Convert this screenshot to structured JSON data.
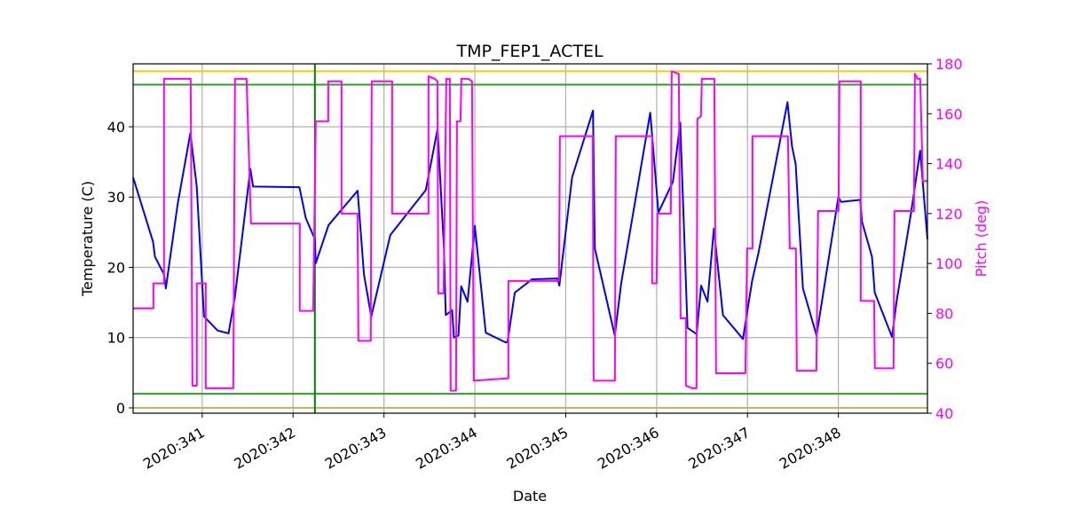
{
  "chart_data": {
    "type": "line",
    "title": "TMP_FEP1_ACTEL",
    "xlabel": "Date",
    "ylabel": "Temperature (C)",
    "y2label": "Pitch (deg)",
    "xlim": [
      340.24,
      348.98
    ],
    "xticks": [
      {
        "value": 341,
        "label": "2020:341"
      },
      {
        "value": 342,
        "label": "2020:342"
      },
      {
        "value": 343,
        "label": "2020:343"
      },
      {
        "value": 344,
        "label": "2020:344"
      },
      {
        "value": 345,
        "label": "2020:345"
      },
      {
        "value": 346,
        "label": "2020:346"
      },
      {
        "value": 347,
        "label": "2020:347"
      },
      {
        "value": 348,
        "label": "2020:348"
      }
    ],
    "ylim": [
      -0.76,
      48.96
    ],
    "yticks": [
      0,
      10,
      20,
      30,
      40
    ],
    "y2lim": [
      40,
      180
    ],
    "y2ticks": [
      40,
      60,
      80,
      100,
      120,
      140,
      160,
      180
    ],
    "y2color": "#ff00ff",
    "grid": true,
    "hlines": [
      {
        "y": 47.9,
        "color": "#ffc800"
      },
      {
        "y": 46,
        "color": "#2ca02c"
      },
      {
        "y": 2,
        "color": "#2ca02c"
      },
      {
        "y": 0,
        "color": "#c8b464"
      }
    ],
    "vlines": [
      {
        "x": 342.24,
        "color": "#008000"
      }
    ],
    "series": [
      {
        "color": "#0000ff",
        "x": [
          340.24,
          340.46,
          340.48,
          340.58,
          340.6,
          340.73,
          340.87,
          340.94,
          341.02,
          341.17,
          341.29,
          341.36,
          341.53,
          341.56,
          342.07,
          342.14,
          342.24,
          342.25,
          342.39,
          342.71,
          342.78,
          342.86,
          343.07,
          343.46,
          343.59,
          343.66,
          343.68,
          343.75,
          343.77,
          343.82,
          343.85,
          343.92,
          344.0,
          344.12,
          344.34,
          344.36,
          344.44,
          344.63,
          344.91,
          344.93,
          345.07,
          345.3,
          345.32,
          345.54,
          345.61,
          345.93,
          346.02,
          346.18,
          346.26,
          346.34,
          346.44,
          346.49,
          346.56,
          346.63,
          346.73,
          346.95,
          347.05,
          347.12,
          347.44,
          347.49,
          347.53,
          347.61,
          347.76,
          348.0,
          348.03,
          348.24,
          348.26,
          348.37,
          348.4,
          348.59,
          348.64,
          348.8,
          348.9,
          348.98
        ],
        "values": [
          32.8,
          23.6,
          21.5,
          19,
          17,
          29,
          39.1,
          31.5,
          13,
          11,
          10.6,
          15.8,
          34,
          31.5,
          31.4,
          27,
          24,
          20.6,
          26,
          30.9,
          19,
          13,
          24.6,
          31,
          39.7,
          22.7,
          13.2,
          13.9,
          10,
          10.3,
          17.3,
          15.1,
          25.9,
          10.7,
          9.3,
          9.4,
          16.4,
          18.3,
          18.4,
          17.4,
          32.8,
          42.3,
          22.7,
          10.3,
          17.7,
          42,
          27.8,
          32.2,
          40.6,
          11.4,
          10.5,
          17.4,
          15.1,
          25.5,
          13.2,
          9.8,
          18,
          22,
          43.5,
          37.2,
          34.7,
          17,
          10.3,
          30,
          29.3,
          29.6,
          26.5,
          21.5,
          16.4,
          10.1,
          15.1,
          27.8,
          36.6,
          24
        ]
      },
      {
        "color": "#ff00ff",
        "axis": "y2",
        "x": [
          340.238,
          340.463,
          340.463,
          340.58,
          340.58,
          340.873,
          340.893,
          340.941,
          340.941,
          341.039,
          341.039,
          341.342,
          341.361,
          341.488,
          341.537,
          342.074,
          342.074,
          342.221,
          342.25,
          342.387,
          342.387,
          342.533,
          342.533,
          342.709,
          342.719,
          342.855,
          342.865,
          343.09,
          343.09,
          343.49,
          343.49,
          343.559,
          343.588,
          343.598,
          343.656,
          343.686,
          343.725,
          343.734,
          343.793,
          343.803,
          343.842,
          343.852,
          343.93,
          343.969,
          343.988,
          344.369,
          344.369,
          344.926,
          344.936,
          345.297,
          345.307,
          345.541,
          345.551,
          345.951,
          345.951,
          346.0,
          346.01,
          346.156,
          346.166,
          346.244,
          346.264,
          346.322,
          346.322,
          346.391,
          346.439,
          346.449,
          346.488,
          346.498,
          346.635,
          346.654,
          346.977,
          346.996,
          347.055,
          347.055,
          347.445,
          347.465,
          347.533,
          347.543,
          347.758,
          347.777,
          348.002,
          348.012,
          348.246,
          348.246,
          348.393,
          348.402,
          348.607,
          348.617,
          348.832,
          348.842,
          348.871,
          348.9,
          348.93,
          348.979
        ],
        "values": [
          82,
          82,
          92,
          92,
          174,
          174,
          51,
          51,
          92,
          92,
          50,
          50,
          174,
          174,
          116,
          116,
          81,
          81,
          157,
          157,
          173,
          173,
          120,
          120,
          69,
          69,
          173,
          173,
          120,
          120,
          175,
          174,
          173,
          88,
          88,
          174,
          174,
          49,
          49,
          157,
          157,
          174,
          174,
          173,
          53,
          54,
          93,
          93,
          151,
          151,
          53,
          53,
          151,
          151,
          92,
          92,
          120,
          120,
          177,
          176,
          78,
          78,
          51,
          50,
          50,
          158,
          159,
          174,
          174,
          56,
          56,
          106,
          106,
          151,
          151,
          106,
          106,
          57,
          57,
          121,
          121,
          173,
          173,
          85,
          85,
          58,
          58,
          121,
          121,
          176,
          174,
          174,
          133,
          133
        ]
      }
    ]
  }
}
